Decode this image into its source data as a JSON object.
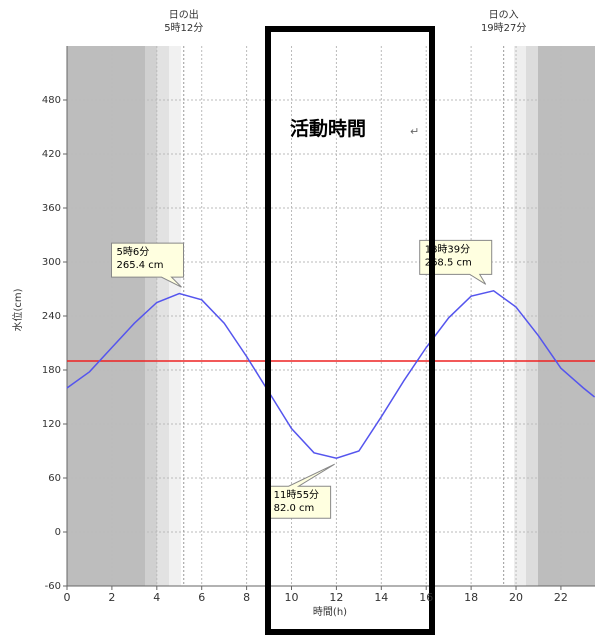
{
  "chart_data": {
    "type": "line",
    "y_label": "水位(cm)",
    "x_label": "時間(h)",
    "x": [
      0,
      1,
      2,
      3,
      4,
      5,
      6,
      7,
      8,
      9,
      10,
      11,
      12,
      13,
      14,
      15,
      16,
      17,
      18,
      19,
      20,
      21,
      22,
      23,
      23.5
    ],
    "series": [
      {
        "name": "水位",
        "color": "#5555ee",
        "values": [
          160,
          178,
          205,
          232,
          255,
          265,
          258,
          232,
          195,
          155,
          115,
          88,
          82,
          90,
          128,
          168,
          205,
          238,
          262,
          268,
          250,
          218,
          182,
          160,
          150
        ]
      }
    ],
    "reference_line": {
      "value": 190,
      "color": "#ee2222"
    },
    "xlim": [
      0,
      23.5
    ],
    "xticks": [
      0,
      2,
      4,
      6,
      8,
      10,
      12,
      14,
      16,
      18,
      20,
      22
    ],
    "ylim": [
      -60,
      540
    ],
    "yticks": [
      -60,
      0,
      60,
      120,
      180,
      240,
      300,
      360,
      420,
      480
    ],
    "grid": true,
    "sun": [
      {
        "label": "日の出",
        "time": "5時12分",
        "x": 5.2
      },
      {
        "label": "日の入",
        "time": "19時27分",
        "x": 19.45
      }
    ],
    "annotations": [
      {
        "x": 5.1,
        "y": 265.4,
        "time": "5時6分",
        "level": "265.4 cm"
      },
      {
        "x": 11.92,
        "y": 82.0,
        "time": "11時55分",
        "level": "82.0 cm"
      },
      {
        "x": 18.65,
        "y": 268.5,
        "time": "18時39分",
        "level": "268.5 cm"
      }
    ],
    "highlight": {
      "label": "活動時間"
    }
  }
}
